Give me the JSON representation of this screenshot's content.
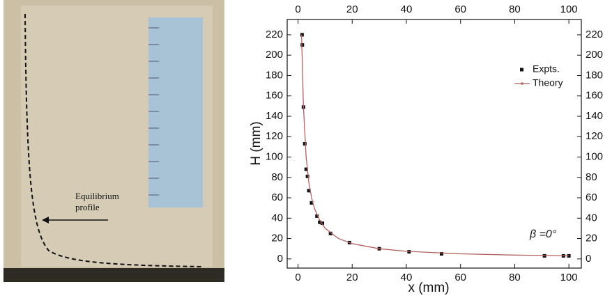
{
  "photo": {
    "label_lines": [
      "Equilibrium",
      "profile"
    ]
  },
  "chart_data": {
    "type": "line",
    "x_label": "x (mm)",
    "y_label": "H (mm)",
    "annotation": "β =0°",
    "xlim": [
      -4,
      104.6
    ],
    "ylim": [
      -9,
      235
    ],
    "xticks": [
      0,
      20,
      40,
      60,
      80,
      100
    ],
    "yticks": [
      0,
      20,
      40,
      60,
      80,
      100,
      120,
      140,
      160,
      180,
      200,
      220
    ],
    "legend": "upper right",
    "series": [
      {
        "name": "Expts.",
        "style": "markers",
        "color": "#111111",
        "x": [
          1.5,
          1.6,
          2,
          2.5,
          3,
          3.5,
          4,
          5,
          7,
          8,
          9,
          12,
          19,
          30,
          41,
          53,
          91,
          98,
          100
        ],
        "values": [
          220,
          210,
          149,
          113,
          88,
          81,
          67,
          55,
          42,
          36,
          35,
          25,
          16,
          10,
          7,
          5,
          3,
          3,
          3
        ]
      },
      {
        "name": "Theory",
        "style": "line",
        "color": "#b5605f",
        "x": [
          1.3,
          2,
          3,
          4,
          5,
          6,
          8,
          10,
          15,
          20,
          30,
          40,
          60,
          80,
          100
        ],
        "values": [
          220,
          150,
          100,
          75,
          60,
          50,
          38,
          30,
          20,
          15,
          10,
          7.5,
          5,
          3.8,
          3
        ]
      }
    ]
  }
}
